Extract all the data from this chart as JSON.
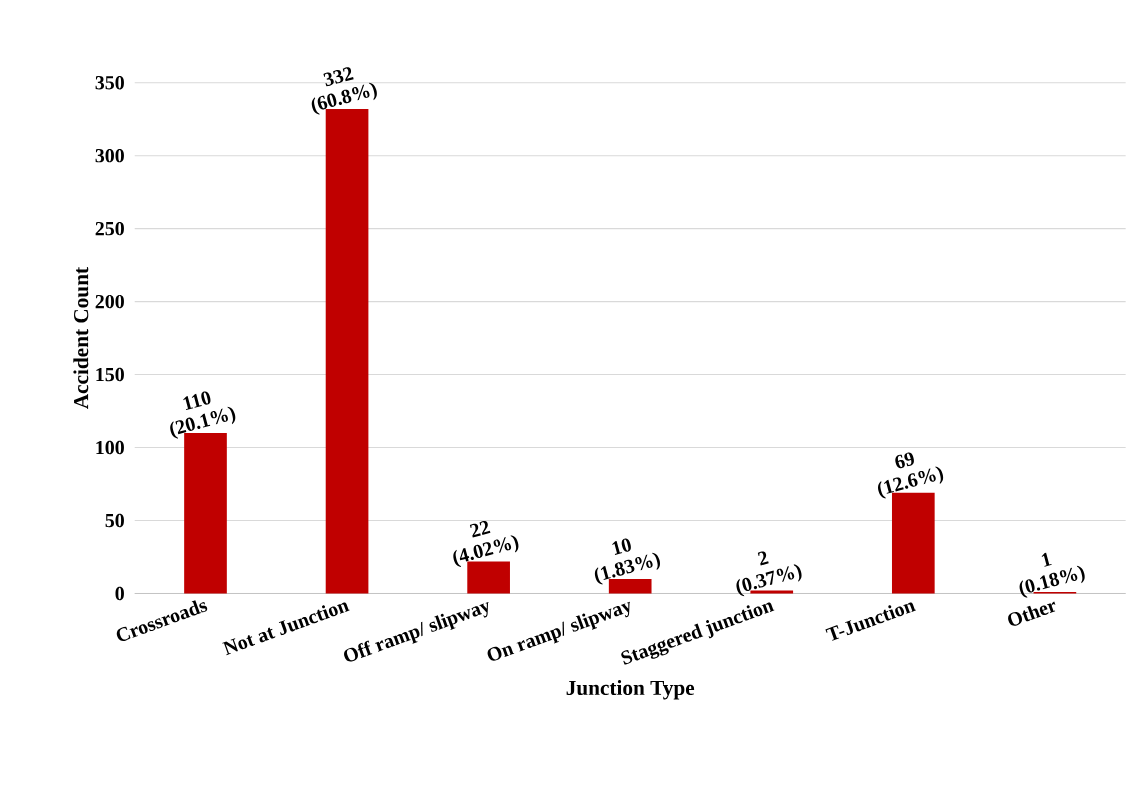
{
  "chart_data": {
    "type": "bar",
    "xlabel": "Junction Type",
    "ylabel": "Accident Count",
    "categories": [
      "Crossroads",
      "Not at Junction",
      "Off ramp/ slipway",
      "On ramp/ slipway",
      "Staggered junction",
      "T-Junction",
      "Other"
    ],
    "values": [
      110,
      332,
      22,
      10,
      2,
      69,
      1
    ],
    "value_labels": [
      "110 (20.1%)",
      "332 (60.8%)",
      "22 (4.02%)",
      "10 (1.83%)",
      "2 (0.37%)",
      "69 (12.6%)",
      "1 (0.18%)"
    ],
    "color": "#c00000",
    "ylim": [
      0,
      350
    ],
    "yticks": [
      0,
      50,
      100,
      150,
      200,
      250,
      300,
      350
    ],
    "grid": "y"
  }
}
